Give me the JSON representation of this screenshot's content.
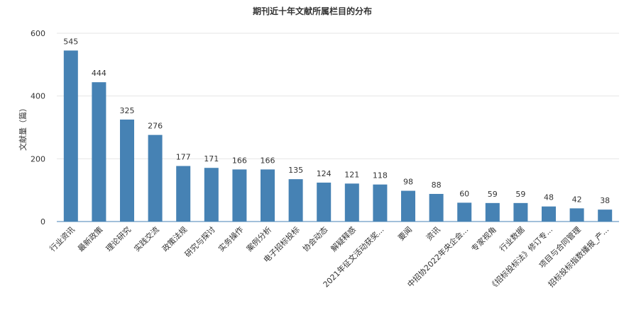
{
  "chart_data": {
    "type": "bar",
    "title": "期刊近十年文献所属栏目的分布",
    "xlabel": "",
    "ylabel": "文献量（篇）",
    "ylim": [
      0,
      600
    ],
    "yticks": [
      0,
      200,
      400,
      600
    ],
    "grid": true,
    "bar_color": "#4682b4",
    "categories": [
      "行业资讯",
      "最新政策",
      "理论研究",
      "实践交流",
      "政策法规",
      "研究与探讨",
      "实务操作",
      "案例分析",
      "电子招标投标",
      "协会动态",
      "解疑释惑",
      "2021年征文活动获奖...",
      "要闻",
      "资讯",
      "中招协2022年央企会...",
      "专家视角",
      "行业数据",
      "《招标投标法》修订专...",
      "项目与合同管理",
      "招标投标指数播报_产..."
    ],
    "values": [
      545,
      444,
      325,
      276,
      177,
      171,
      166,
      166,
      135,
      124,
      121,
      118,
      98,
      88,
      60,
      59,
      59,
      48,
      42,
      38
    ]
  }
}
